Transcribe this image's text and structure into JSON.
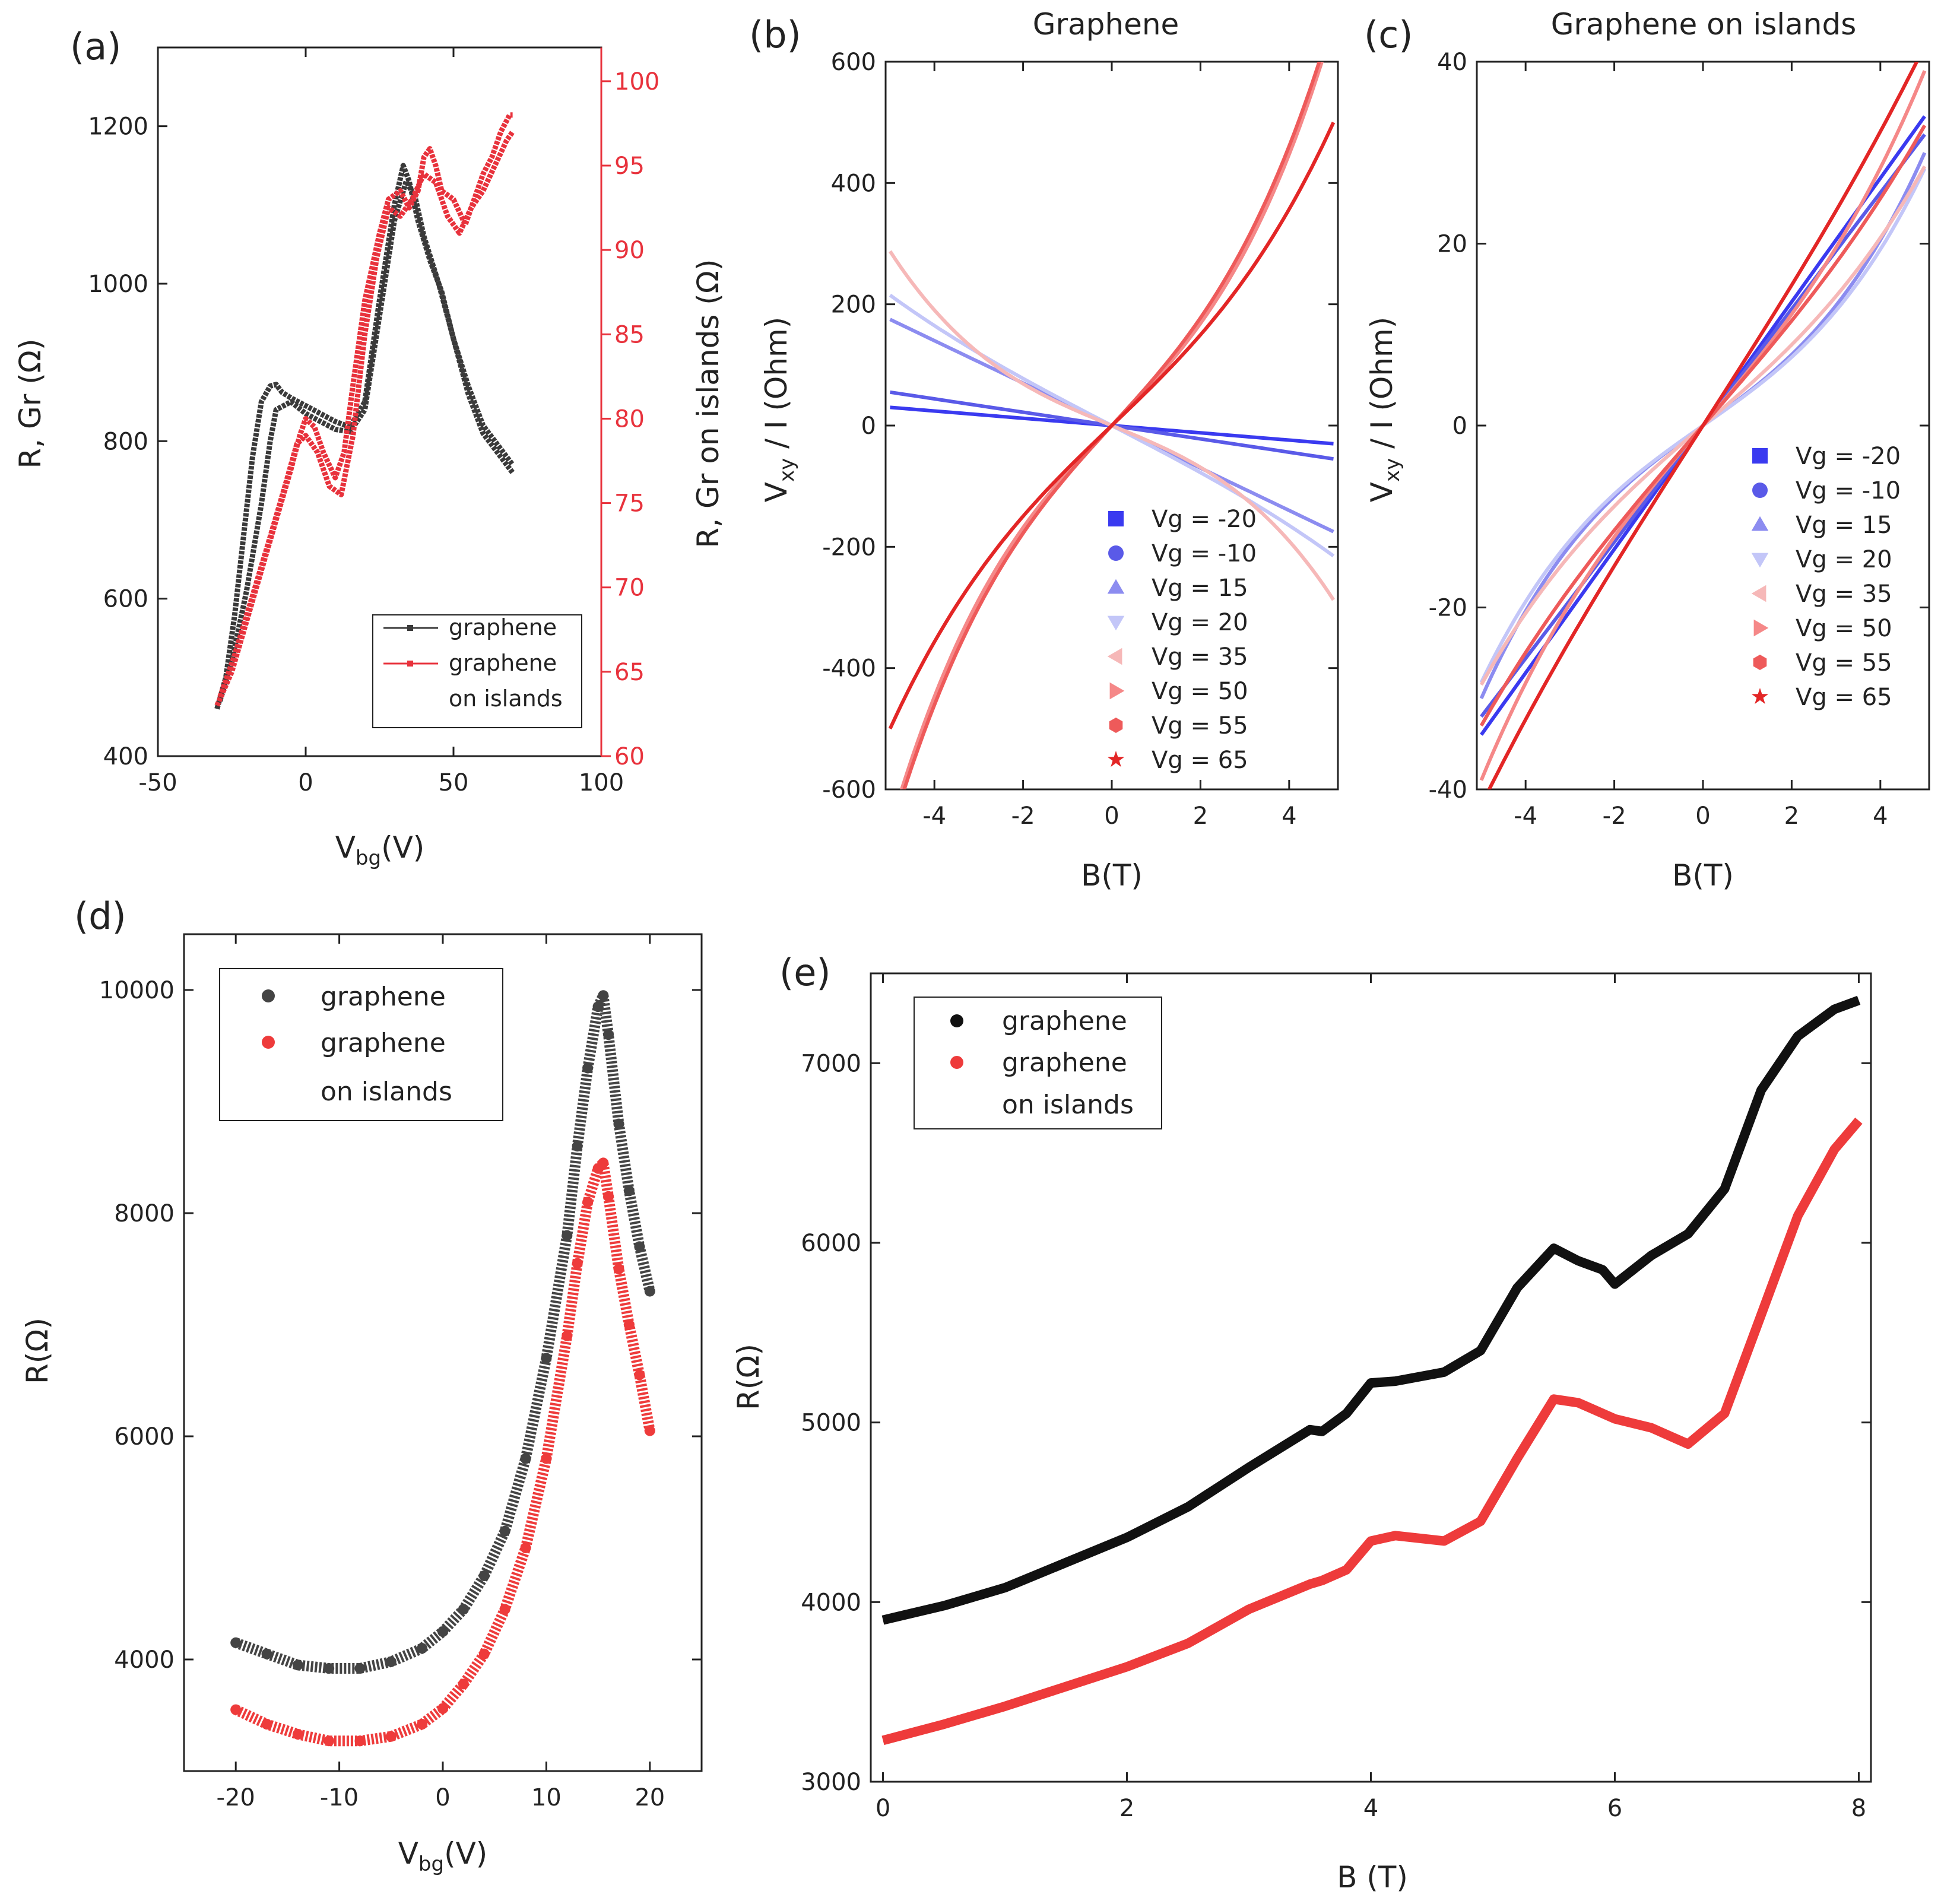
{
  "figure": {
    "panels": [
      "(a)",
      "(b)",
      "(c)",
      "(d)",
      "(e)"
    ]
  },
  "chart_data": [
    {
      "id": "a",
      "panel_label": "(a)",
      "type": "line",
      "title": "",
      "xlabel": "V",
      "xlabel_sub": "bg",
      "xlabel_suffix": "(V)",
      "ylabel": "R, Gr (Ω)",
      "ylabel_right": "R, Gr on islands (Ω)",
      "xlim": [
        -50,
        100
      ],
      "ylim": [
        400,
        1300
      ],
      "ylim_right": [
        60,
        102
      ],
      "xticks": [
        -50,
        0,
        50,
        100
      ],
      "yticks": [
        400,
        600,
        800,
        1000,
        1200
      ],
      "yticks_right": [
        60,
        65,
        70,
        75,
        80,
        85,
        90,
        95,
        100
      ],
      "right_axis_color": "#e8323c",
      "legend_position": "bottom-right",
      "series": [
        {
          "name": "graphene",
          "axis": "left",
          "color": "#3a3a3a",
          "x": [
            -30,
            -27,
            -24,
            -21,
            -18,
            -15,
            -12,
            -10,
            -8,
            -5,
            0,
            5,
            10,
            15,
            20,
            25,
            30,
            33,
            35,
            38,
            42,
            46,
            50,
            55,
            60,
            65,
            70
          ],
          "y": [
            460,
            500,
            580,
            680,
            780,
            850,
            870,
            872,
            862,
            855,
            845,
            835,
            825,
            818,
            850,
            980,
            1100,
            1150,
            1130,
            1080,
            1030,
            990,
            930,
            870,
            820,
            795,
            770
          ]
        },
        {
          "name": "graphene",
          "axis": "left",
          "color": "#3a3a3a",
          "x": [
            -29,
            -25,
            -20,
            -15,
            -12,
            -10,
            -5,
            0,
            5,
            10,
            15,
            20,
            25,
            30,
            34,
            37,
            40,
            45,
            50,
            55,
            60,
            65,
            70
          ],
          "y": [
            470,
            520,
            610,
            720,
            800,
            840,
            850,
            835,
            825,
            815,
            812,
            840,
            960,
            1080,
            1130,
            1110,
            1060,
            1000,
            930,
            860,
            810,
            785,
            760
          ]
        },
        {
          "name": "graphene on islands",
          "axis": "right",
          "color": "#e8323c",
          "x": [
            -30,
            -25,
            -20,
            -15,
            -10,
            -5,
            -2,
            0,
            3,
            6,
            10,
            13,
            16,
            20,
            25,
            28,
            32,
            35,
            38,
            40,
            42,
            44,
            46,
            50,
            54,
            57,
            60,
            63,
            66,
            69,
            70
          ],
          "y": [
            63,
            65,
            68,
            71,
            74,
            77,
            79,
            80,
            79.5,
            78,
            76.5,
            78,
            82,
            87,
            91,
            93,
            93.5,
            92.5,
            93.5,
            95.5,
            96,
            95,
            93.5,
            93,
            91.5,
            93,
            94.5,
            95.5,
            97,
            98,
            98
          ]
        },
        {
          "name": "graphene on islands",
          "axis": "right",
          "color": "#e8323c",
          "x": [
            -29,
            -24,
            -18,
            -12,
            -7,
            -3,
            0,
            4,
            8,
            12,
            16,
            20,
            24,
            28,
            32,
            36,
            40,
            44,
            48,
            52,
            56,
            60,
            64,
            68,
            70
          ],
          "y": [
            63.5,
            66,
            69.5,
            73,
            76,
            78.5,
            79,
            78,
            76,
            75.5,
            79,
            85,
            89.5,
            92.5,
            92,
            93,
            94.5,
            94,
            92,
            91,
            92.5,
            93.5,
            95,
            96.5,
            97
          ]
        }
      ],
      "legend": [
        "graphene",
        "graphene",
        "on islands"
      ]
    },
    {
      "id": "b",
      "panel_label": "(b)",
      "type": "line",
      "title": "Graphene",
      "xlabel": "B(T)",
      "ylabel": "V",
      "ylabel_sub": "xy",
      "ylabel_suffix": " / I (Ohm)",
      "xlim": [
        -5.1,
        5.1
      ],
      "ylim": [
        -600,
        600
      ],
      "xticks": [
        -4,
        -2,
        0,
        2,
        4
      ],
      "yticks": [
        -600,
        -400,
        -200,
        0,
        200,
        400,
        600
      ],
      "legend_position": "bottom-right",
      "series": [
        {
          "name": "Vg = -20",
          "marker": "square",
          "color": "#3a3af0",
          "slope": -6,
          "cube": 0
        },
        {
          "name": "Vg = -10",
          "marker": "circle",
          "color": "#5a5ae8",
          "slope": -11,
          "cube": 0
        },
        {
          "name": "Vg = 15",
          "marker": "triangle-up",
          "color": "#8c8cf0",
          "slope": -35,
          "cube": 0
        },
        {
          "name": "Vg = 20",
          "marker": "triangle-down",
          "color": "#c3c6f8",
          "slope": -38,
          "cube": -0.2
        },
        {
          "name": "Vg = 35",
          "marker": "triangle-left",
          "color": "#f6b8b8",
          "slope": -30,
          "cube": -1.1
        },
        {
          "name": "Vg = 50",
          "marker": "triangle-right",
          "color": "#f58888",
          "slope": 75,
          "cube": 2.3
        },
        {
          "name": "Vg = 55",
          "marker": "hexagon",
          "color": "#ee5a5a",
          "slope": 80,
          "cube": 2.2
        },
        {
          "name": "Vg = 65",
          "marker": "star",
          "color": "#e32626",
          "slope": 70,
          "cube": 1.2
        }
      ]
    },
    {
      "id": "c",
      "panel_label": "(c)",
      "type": "line",
      "title": "Graphene on islands",
      "xlabel": "B(T)",
      "ylabel": "V",
      "ylabel_sub": "xy",
      "ylabel_suffix": " / I (Ohm)",
      "xlim": [
        -5.1,
        5.1
      ],
      "ylim": [
        -40,
        40
      ],
      "xticks": [
        -4,
        -2,
        0,
        2,
        4
      ],
      "yticks": [
        -40,
        -20,
        0,
        20,
        40
      ],
      "legend_position": "right",
      "series": [
        {
          "name": "Vg = -20",
          "marker": "square",
          "color": "#3a3af0",
          "slope": 6.8,
          "cube": 0
        },
        {
          "name": "Vg = -10",
          "marker": "circle",
          "color": "#5a5ae8",
          "slope": 6.4,
          "cube": 0
        },
        {
          "name": "Vg = 15",
          "marker": "triangle-up",
          "color": "#8c8cf0",
          "slope": 3.5,
          "cube": 0.1
        },
        {
          "name": "Vg = 20",
          "marker": "triangle-down",
          "color": "#c3c6f8",
          "slope": 3.4,
          "cube": 0.09
        },
        {
          "name": "Vg = 35",
          "marker": "triangle-left",
          "color": "#f6b8b8",
          "slope": 4.2,
          "cube": 0.06
        },
        {
          "name": "Vg = 50",
          "marker": "triangle-right",
          "color": "#f58888",
          "slope": 5.8,
          "cube": 0.08
        },
        {
          "name": "Vg = 55",
          "marker": "hexagon",
          "color": "#ee5a5a",
          "slope": 5.6,
          "cube": 0.04
        },
        {
          "name": "Vg = 65",
          "marker": "star",
          "color": "#e32626",
          "slope": 7.6,
          "cube": 0.03
        }
      ]
    },
    {
      "id": "d",
      "panel_label": "(d)",
      "type": "scatter",
      "title": "",
      "xlabel": "V",
      "xlabel_sub": "bg",
      "xlabel_suffix": "(V)",
      "ylabel": "R(Ω)",
      "xlim": [
        -25,
        25
      ],
      "ylim": [
        3000,
        10500
      ],
      "xticks": [
        -20,
        -10,
        0,
        10,
        20
      ],
      "yticks": [
        4000,
        6000,
        8000,
        10000
      ],
      "legend_position": "top-left",
      "legend": [
        "graphene",
        "graphene",
        "on islands"
      ],
      "series": [
        {
          "name": "graphene",
          "color": "#444444",
          "x": [
            -20,
            -17,
            -14,
            -11,
            -8,
            -5,
            -2,
            0,
            2,
            4,
            6,
            8,
            10,
            12,
            13,
            14,
            15,
            15.5,
            16,
            17,
            18,
            19,
            20
          ],
          "y": [
            4150,
            4050,
            3950,
            3920,
            3920,
            3980,
            4100,
            4250,
            4450,
            4750,
            5150,
            5800,
            6700,
            7800,
            8600,
            9300,
            9850,
            9950,
            9600,
            8800,
            8200,
            7700,
            7300
          ]
        },
        {
          "name": "graphene on islands",
          "color": "#ee3b3b",
          "x": [
            -20,
            -17,
            -14,
            -11,
            -8,
            -5,
            -2,
            0,
            2,
            4,
            6,
            8,
            10,
            12,
            13,
            14,
            15,
            15.5,
            16,
            17,
            18,
            19,
            20
          ],
          "y": [
            3550,
            3420,
            3330,
            3270,
            3270,
            3310,
            3420,
            3560,
            3780,
            4050,
            4450,
            5000,
            5800,
            6900,
            7550,
            8100,
            8400,
            8450,
            8150,
            7500,
            7000,
            6550,
            6050
          ]
        }
      ]
    },
    {
      "id": "e",
      "panel_label": "(e)",
      "type": "line",
      "title": "",
      "xlabel": "B (T)",
      "ylabel": "R(Ω)",
      "xlim": [
        -0.1,
        8.1
      ],
      "ylim": [
        3000,
        7500
      ],
      "xticks": [
        0,
        2,
        4,
        6,
        8
      ],
      "yticks": [
        3000,
        4000,
        5000,
        6000,
        7000
      ],
      "legend_position": "top-left",
      "legend": [
        "graphene",
        "graphene",
        "on islands"
      ],
      "series": [
        {
          "name": "graphene",
          "color": "#111111",
          "x": [
            0,
            0.5,
            1,
            1.5,
            2,
            2.5,
            3,
            3.5,
            3.6,
            3.8,
            4,
            4.2,
            4.6,
            4.9,
            5.2,
            5.5,
            5.7,
            5.9,
            6,
            6.3,
            6.6,
            6.9,
            7.2,
            7.5,
            7.8,
            8
          ],
          "y": [
            3900,
            3980,
            4080,
            4220,
            4360,
            4530,
            4750,
            4960,
            4950,
            5050,
            5220,
            5230,
            5280,
            5400,
            5750,
            5970,
            5900,
            5850,
            5770,
            5930,
            6050,
            6300,
            6850,
            7150,
            7300,
            7350
          ]
        },
        {
          "name": "graphene on islands",
          "color": "#ee3b3b",
          "x": [
            0,
            0.5,
            1,
            1.5,
            2,
            2.5,
            3,
            3.5,
            3.6,
            3.8,
            4,
            4.2,
            4.6,
            4.9,
            5.2,
            5.5,
            5.7,
            6,
            6.3,
            6.6,
            6.9,
            7.2,
            7.5,
            7.8,
            8
          ],
          "y": [
            3230,
            3320,
            3420,
            3530,
            3640,
            3770,
            3960,
            4100,
            4120,
            4180,
            4340,
            4370,
            4340,
            4450,
            4800,
            5130,
            5110,
            5020,
            4970,
            4880,
            5050,
            5600,
            6150,
            6520,
            6680
          ]
        }
      ]
    }
  ]
}
